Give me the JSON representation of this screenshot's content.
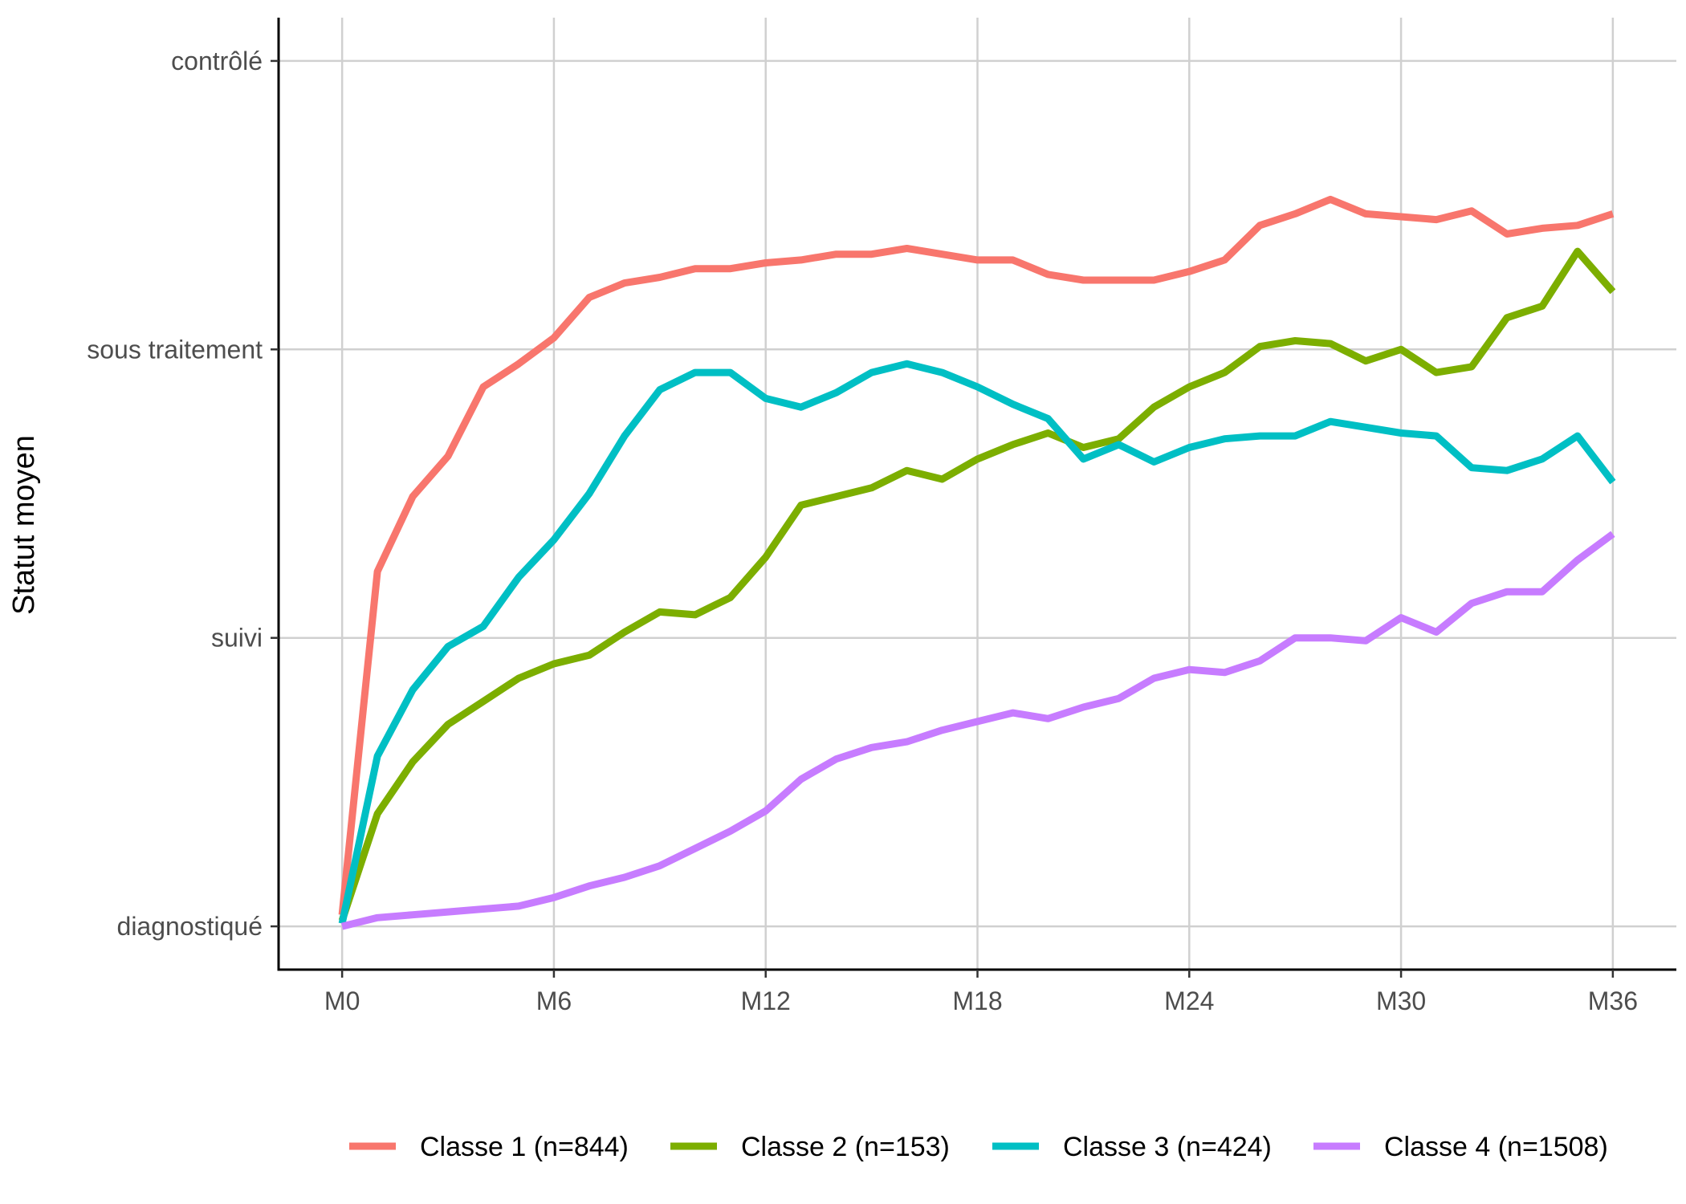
{
  "chart_data": {
    "type": "line",
    "title": "",
    "xlabel": "",
    "ylabel": "Statut moyen",
    "x": [
      0,
      1,
      2,
      3,
      4,
      5,
      6,
      7,
      8,
      9,
      10,
      11,
      12,
      13,
      14,
      15,
      16,
      17,
      18,
      19,
      20,
      21,
      22,
      23,
      24,
      25,
      26,
      27,
      28,
      29,
      30,
      31,
      32,
      33,
      34,
      35,
      36
    ],
    "x_ticks": [
      {
        "value": 0,
        "label": "M0"
      },
      {
        "value": 6,
        "label": "M6"
      },
      {
        "value": 12,
        "label": "M12"
      },
      {
        "value": 18,
        "label": "M18"
      },
      {
        "value": 24,
        "label": "M24"
      },
      {
        "value": 30,
        "label": "M30"
      },
      {
        "value": 36,
        "label": "M36"
      }
    ],
    "y_ticks": [
      {
        "value": 1,
        "label": "diagnostiqué"
      },
      {
        "value": 2,
        "label": "suivi"
      },
      {
        "value": 3,
        "label": "sous traitement"
      },
      {
        "value": 4,
        "label": "contrôlé"
      }
    ],
    "xlim": [
      -1.8,
      37.8
    ],
    "ylim": [
      0.85,
      4.15
    ],
    "grid": true,
    "legend_position": "bottom",
    "series": [
      {
        "name": "Classe 1 (n=844)",
        "color": "#F8766D",
        "values": [
          1.04,
          2.23,
          2.49,
          2.63,
          2.87,
          2.95,
          3.04,
          3.18,
          3.23,
          3.25,
          3.28,
          3.28,
          3.3,
          3.31,
          3.33,
          3.33,
          3.35,
          3.33,
          3.31,
          3.31,
          3.26,
          3.24,
          3.24,
          3.24,
          3.27,
          3.31,
          3.43,
          3.47,
          3.52,
          3.47,
          3.46,
          3.45,
          3.48,
          3.4,
          3.42,
          3.43,
          3.47
        ]
      },
      {
        "name": "Classe 2 (n=153)",
        "color": "#7CAE00",
        "values": [
          1.02,
          1.39,
          1.57,
          1.7,
          1.78,
          1.86,
          1.91,
          1.94,
          2.02,
          2.09,
          2.08,
          2.14,
          2.28,
          2.46,
          2.49,
          2.52,
          2.58,
          2.55,
          2.62,
          2.67,
          2.71,
          2.66,
          2.69,
          2.8,
          2.87,
          2.92,
          3.01,
          3.03,
          3.02,
          2.96,
          3.0,
          2.92,
          2.94,
          3.11,
          3.15,
          3.34,
          3.2
        ]
      },
      {
        "name": "Classe 3 (n=424)",
        "color": "#00BFC4",
        "values": [
          1.01,
          1.59,
          1.82,
          1.97,
          2.04,
          2.21,
          2.34,
          2.5,
          2.7,
          2.86,
          2.92,
          2.92,
          2.83,
          2.8,
          2.85,
          2.92,
          2.95,
          2.92,
          2.87,
          2.81,
          2.76,
          2.62,
          2.67,
          2.61,
          2.66,
          2.69,
          2.7,
          2.7,
          2.75,
          2.73,
          2.71,
          2.7,
          2.59,
          2.58,
          2.62,
          2.7,
          2.54
        ]
      },
      {
        "name": "Classe 4 (n=1508)",
        "color": "#C77CFF",
        "values": [
          1.0,
          1.03,
          1.04,
          1.05,
          1.06,
          1.07,
          1.1,
          1.14,
          1.17,
          1.21,
          1.27,
          1.33,
          1.4,
          1.51,
          1.58,
          1.62,
          1.64,
          1.68,
          1.71,
          1.74,
          1.72,
          1.76,
          1.79,
          1.86,
          1.89,
          1.88,
          1.92,
          2.0,
          2.0,
          1.99,
          2.07,
          2.02,
          2.12,
          2.16,
          2.16,
          2.27,
          2.36
        ]
      }
    ]
  }
}
